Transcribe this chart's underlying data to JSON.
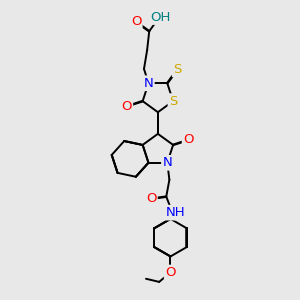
{
  "background_color": "#e8e8e8",
  "atom_colors": {
    "O": "#ff0000",
    "N": "#0000ff",
    "S": "#ccaa00",
    "H": "#008080",
    "C": "#000000"
  },
  "bond_color": "#000000",
  "bond_width": 1.4,
  "font_size": 9.5,
  "fig_width": 3.0,
  "fig_height": 3.0,
  "dpi": 100
}
